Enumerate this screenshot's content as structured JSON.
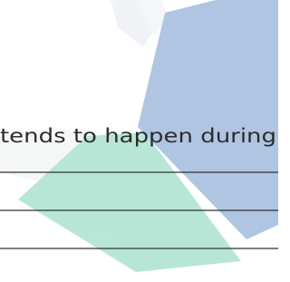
{
  "text": "tends to happen during"
}
